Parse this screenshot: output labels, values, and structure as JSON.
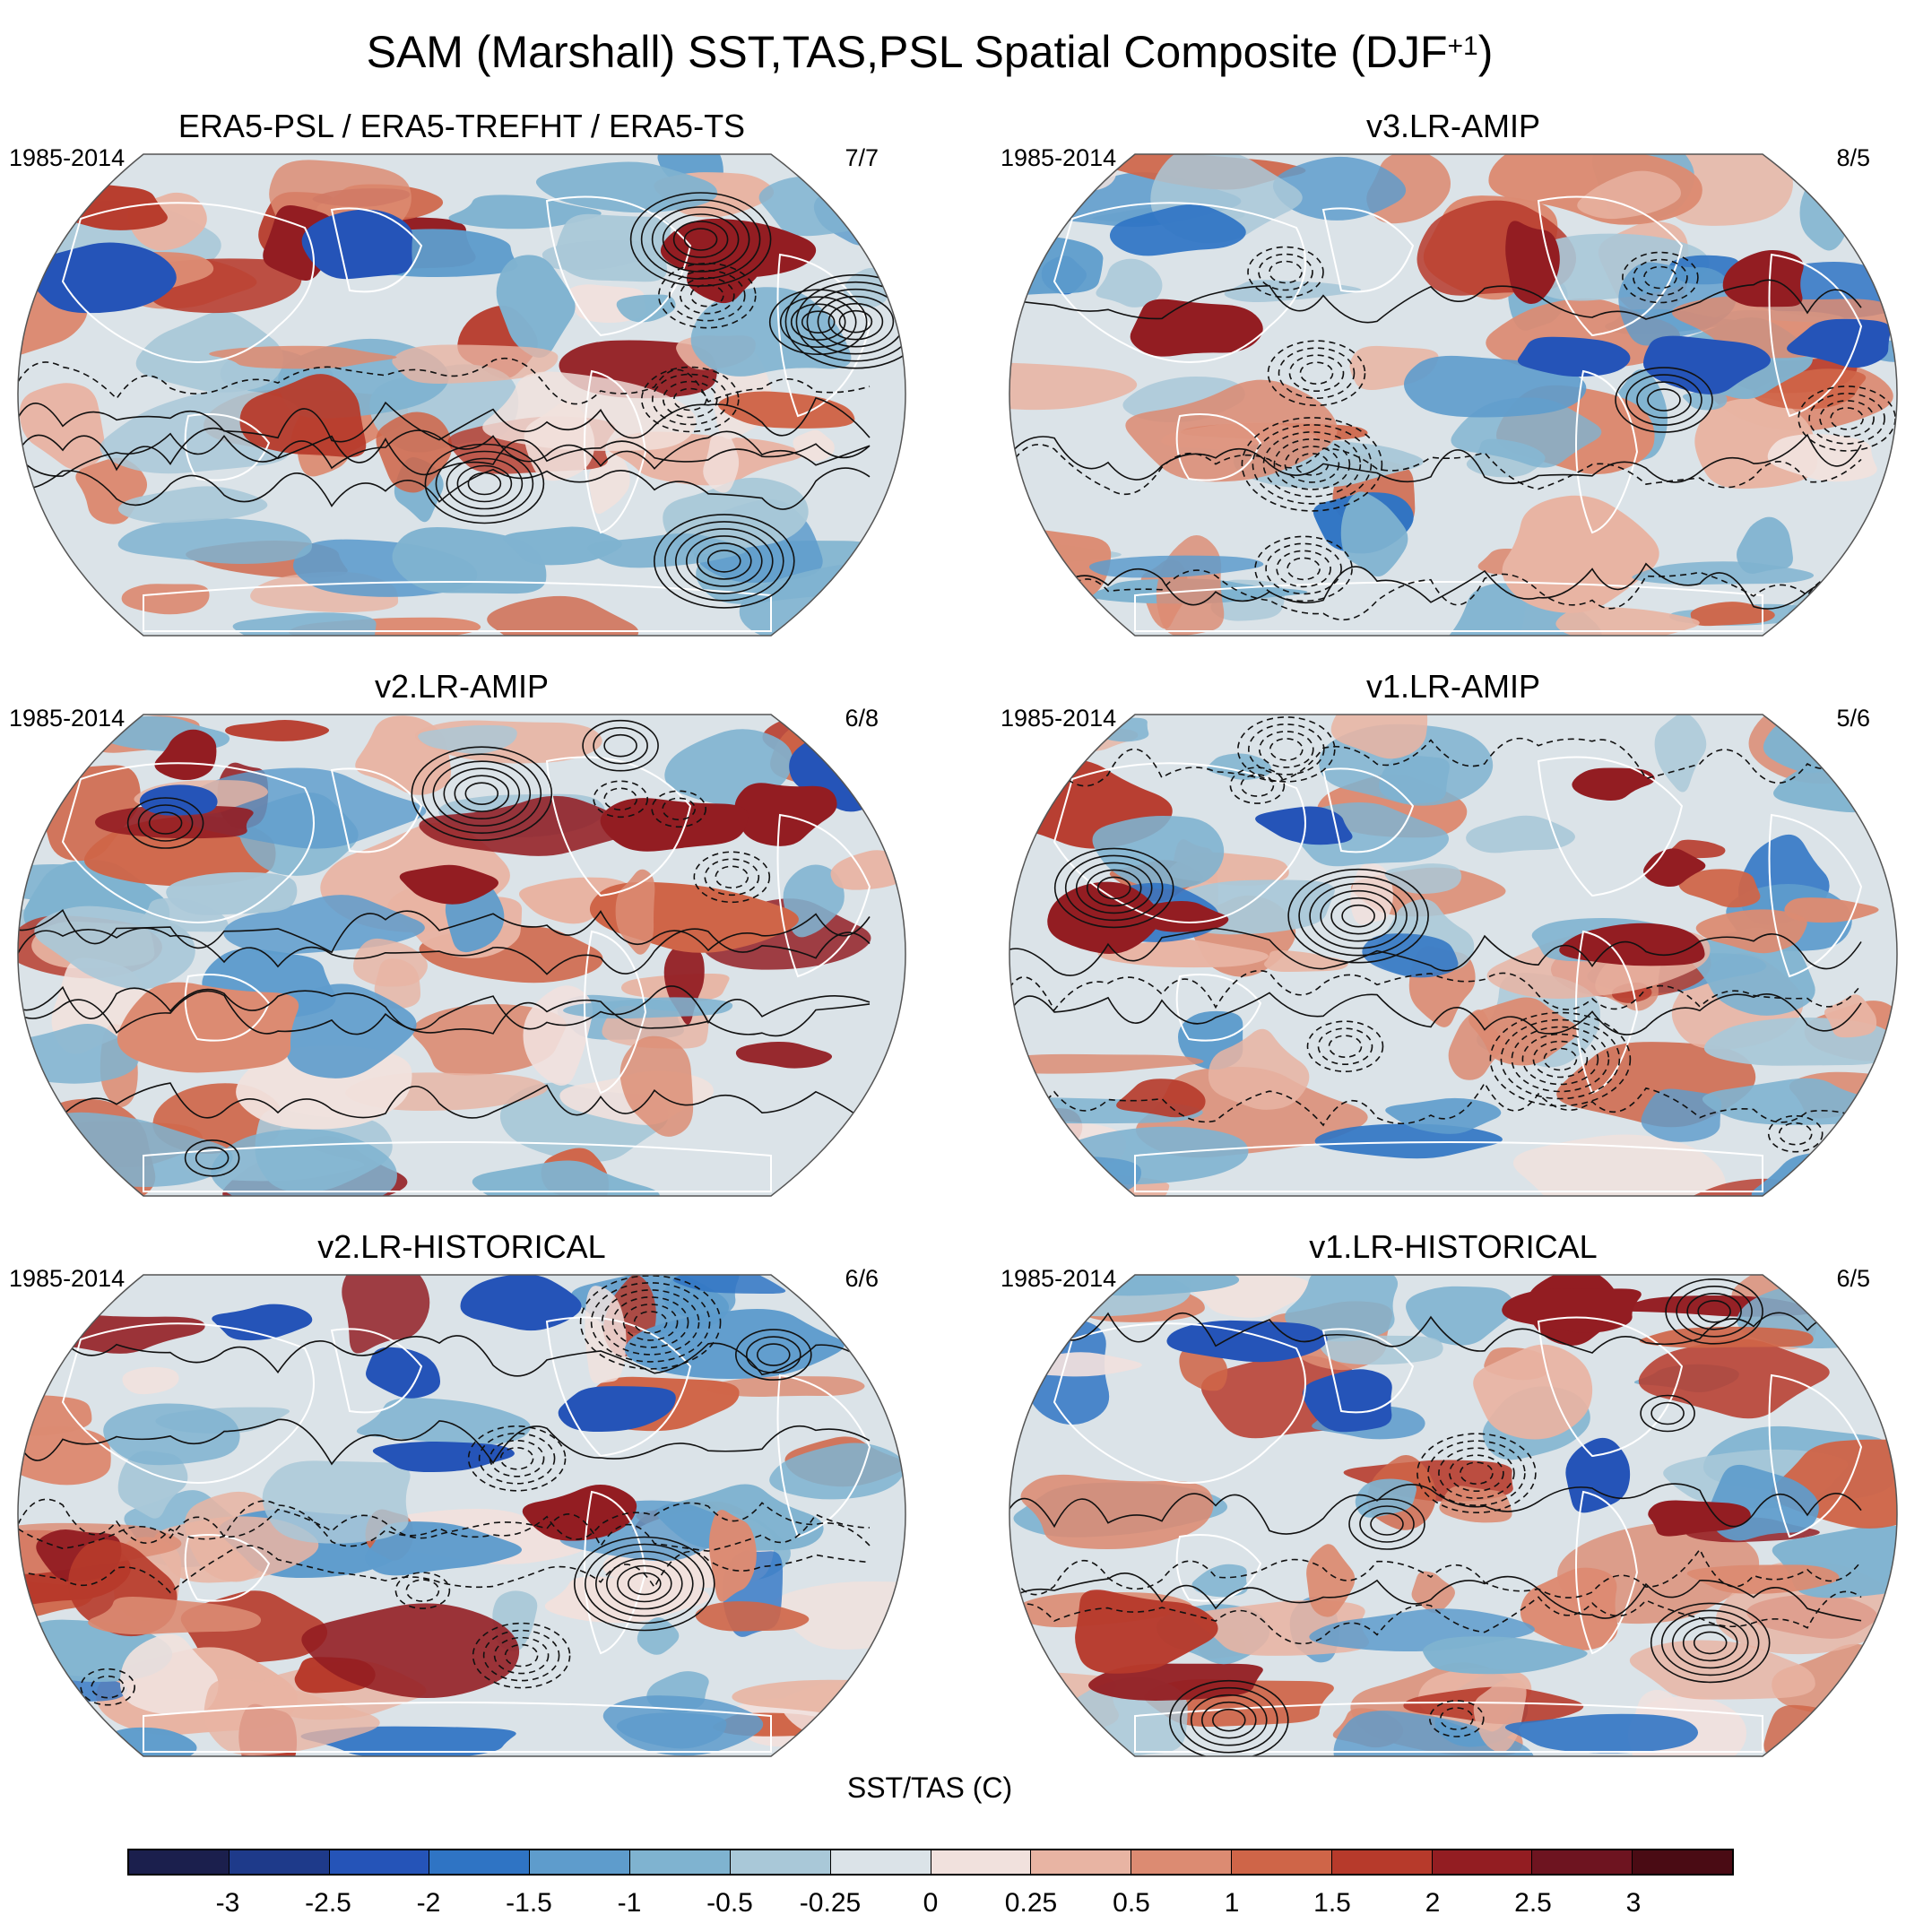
{
  "title": {
    "main": "SAM (Marshall) SST,TAS,PSL Spatial Composite (DJF",
    "sup": "+1",
    "close": ")"
  },
  "panels": [
    {
      "title": "ERA5-PSL / ERA5-TREFHT / ERA5-TS",
      "years": "1985-2014",
      "count": "7/7"
    },
    {
      "title": "v3.LR-AMIP",
      "years": "1985-2014",
      "count": "8/5"
    },
    {
      "title": "v2.LR-AMIP",
      "years": "1985-2014",
      "count": "6/8"
    },
    {
      "title": "v1.LR-AMIP",
      "years": "1985-2014",
      "count": "5/6"
    },
    {
      "title": "v2.LR-HISTORICAL",
      "years": "1985-2014",
      "count": "6/6"
    },
    {
      "title": "v1.LR-HISTORICAL",
      "years": "1985-2014",
      "count": "6/5"
    }
  ],
  "colorbar": {
    "label": "SST/TAS (C)",
    "ticks": [
      "-3",
      "-2.5",
      "-2",
      "-1.5",
      "-1",
      "-0.5",
      "-0.25",
      "0",
      "0.25",
      "0.5",
      "1",
      "1.5",
      "2",
      "2.5",
      "3"
    ],
    "colors": [
      "#1b1f4d",
      "#1e3a8a",
      "#2554b8",
      "#2f74c4",
      "#5e9ccc",
      "#7fb3d0",
      "#a9c8d8",
      "#dbe3e8",
      "#f1e1dd",
      "#e8b4a3",
      "#dc8b72",
      "#cf6548",
      "#b73a2b",
      "#931d22",
      "#6e1420",
      "#4a0b14"
    ]
  },
  "chart_data": {
    "type": "map",
    "projection": "Robinson (global, Pacific-centered)",
    "field_shaded": "SST/TAS anomaly (C)",
    "field_contoured": "PSL (solid positive, dashed negative)",
    "contour_levels_shaded": [
      -3,
      -2.5,
      -2,
      -1.5,
      -1,
      -0.5,
      -0.25,
      0,
      0.25,
      0.5,
      1,
      1.5,
      2,
      2.5,
      3
    ]
  }
}
